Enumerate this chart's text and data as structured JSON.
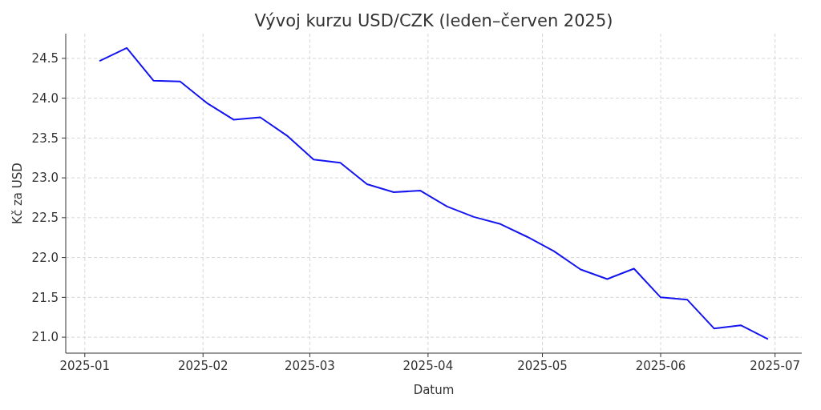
{
  "chart_data": {
    "type": "line",
    "title": "Vývoj kurzu USD/CZK (leden–červen 2025)",
    "xlabel": "Datum",
    "ylabel": "Kč za USD",
    "x": [
      "2025-01-05",
      "2025-01-12",
      "2025-01-19",
      "2025-01-26",
      "2025-02-02",
      "2025-02-09",
      "2025-02-16",
      "2025-02-23",
      "2025-03-02",
      "2025-03-09",
      "2025-03-16",
      "2025-03-23",
      "2025-03-30",
      "2025-04-06",
      "2025-04-13",
      "2025-04-20",
      "2025-04-27",
      "2025-05-04",
      "2025-05-11",
      "2025-05-18",
      "2025-05-25",
      "2025-06-01",
      "2025-06-08",
      "2025-06-15",
      "2025-06-22",
      "2025-06-29"
    ],
    "series": [
      {
        "color": "#1414f0",
        "values": [
          24.47,
          24.63,
          24.22,
          24.21,
          23.94,
          23.73,
          23.76,
          23.53,
          23.23,
          23.19,
          22.92,
          22.82,
          22.84,
          22.64,
          22.51,
          22.42,
          22.26,
          22.08,
          21.85,
          21.73,
          21.86,
          21.5,
          21.47,
          21.11,
          21.15,
          20.98
        ]
      }
    ],
    "xlim": [
      "2024-12-27",
      "2025-07-08"
    ],
    "xticks": [
      {
        "value": "2025-01-01",
        "label": "2025-01"
      },
      {
        "value": "2025-02-01",
        "label": "2025-02"
      },
      {
        "value": "2025-03-01",
        "label": "2025-03"
      },
      {
        "value": "2025-04-01",
        "label": "2025-04"
      },
      {
        "value": "2025-05-01",
        "label": "2025-05"
      },
      {
        "value": "2025-06-01",
        "label": "2025-06"
      },
      {
        "value": "2025-07-01",
        "label": "2025-07"
      }
    ],
    "ylim": [
      20.8,
      24.81
    ],
    "yticks": [
      {
        "value": 21,
        "label": "21.0"
      },
      {
        "value": 21.5,
        "label": "21.5"
      },
      {
        "value": 22,
        "label": "22.0"
      },
      {
        "value": 22.5,
        "label": "22.5"
      },
      {
        "value": 23,
        "label": "23.0"
      },
      {
        "value": 23.5,
        "label": "23.5"
      },
      {
        "value": 24,
        "label": "24.0"
      },
      {
        "value": 24.5,
        "label": "24.5"
      }
    ],
    "grid": true,
    "marker": "none",
    "line_style": "solid"
  }
}
